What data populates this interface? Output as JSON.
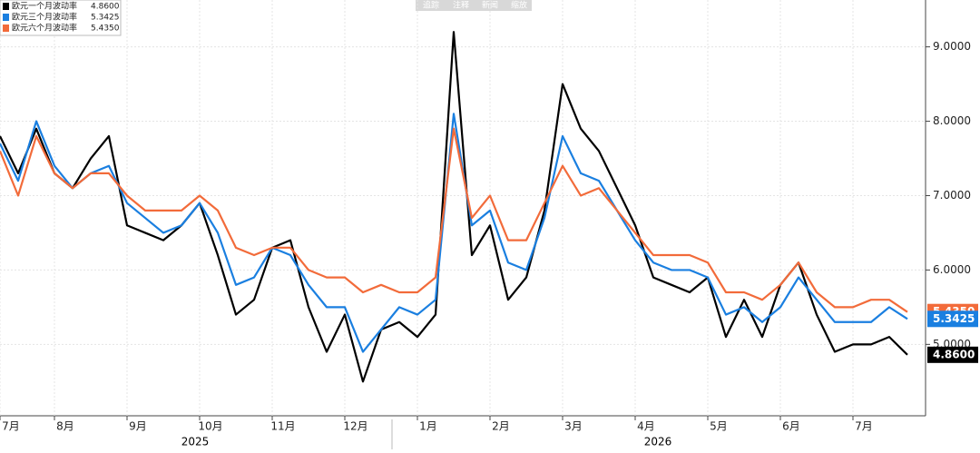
{
  "toolbar": [
    "追踪",
    "注释",
    "新闻",
    "缩放"
  ],
  "chart_data": {
    "type": "line",
    "categories": [
      "7月",
      null,
      null,
      "8月",
      null,
      null,
      null,
      "9月",
      null,
      null,
      null,
      "10月",
      null,
      null,
      null,
      "11月",
      null,
      null,
      null,
      "12月",
      null,
      null,
      null,
      "1月",
      null,
      null,
      null,
      "2月",
      null,
      null,
      null,
      "3月",
      null,
      null,
      null,
      "4月",
      null,
      null,
      null,
      "5月",
      null,
      null,
      null,
      "6月",
      null,
      null,
      null,
      "7月",
      null,
      null,
      null
    ],
    "year_labels": [
      "2025",
      "2026"
    ],
    "ylim": [
      4.04,
      9.63
    ],
    "yticks": [
      {
        "value": 5,
        "label": "5.0000"
      },
      {
        "value": 6,
        "label": "6.0000"
      },
      {
        "value": 7,
        "label": "7.0000"
      },
      {
        "value": 8,
        "label": "8.0000"
      },
      {
        "value": 9,
        "label": "9.0000"
      }
    ],
    "grid": true,
    "legend": "top-left",
    "series": [
      {
        "name": "欧元一个月波动率",
        "color": "#000000",
        "end_label": "4.8600",
        "values": [
          7.8,
          7.3,
          7.9,
          7.3,
          7.1,
          7.5,
          7.8,
          6.6,
          6.5,
          6.4,
          6.6,
          6.9,
          6.2,
          5.4,
          5.6,
          6.3,
          6.4,
          5.5,
          4.9,
          5.4,
          4.5,
          5.2,
          5.3,
          5.1,
          5.4,
          9.2,
          6.2,
          6.6,
          5.6,
          5.9,
          6.8,
          8.5,
          7.9,
          7.6,
          7.1,
          6.6,
          5.9,
          5.8,
          5.7,
          5.9,
          5.1,
          5.6,
          5.1,
          5.8,
          6.1,
          5.4,
          4.9,
          5.0,
          5.0,
          5.1,
          4.86
        ]
      },
      {
        "name": "欧元三个月波动率",
        "color": "#1a7fe0",
        "end_label": "5.3425",
        "values": [
          7.7,
          7.2,
          8.0,
          7.4,
          7.1,
          7.3,
          7.4,
          6.9,
          6.7,
          6.5,
          6.6,
          6.9,
          6.5,
          5.8,
          5.9,
          6.3,
          6.2,
          5.8,
          5.5,
          5.5,
          4.9,
          5.2,
          5.5,
          5.4,
          5.6,
          8.1,
          6.6,
          6.8,
          6.1,
          6.0,
          6.7,
          7.8,
          7.3,
          7.2,
          6.8,
          6.4,
          6.1,
          6.0,
          6.0,
          5.9,
          5.4,
          5.5,
          5.3,
          5.5,
          5.9,
          5.6,
          5.3,
          5.3,
          5.3,
          5.5,
          5.3425
        ]
      },
      {
        "name": "欧元六个月波动率",
        "color": "#f26b3a",
        "end_label": "5.4350",
        "values": [
          7.6,
          7.0,
          7.8,
          7.3,
          7.1,
          7.3,
          7.3,
          7.0,
          6.8,
          6.8,
          6.8,
          7.0,
          6.8,
          6.3,
          6.2,
          6.3,
          6.3,
          6.0,
          5.9,
          5.9,
          5.7,
          5.8,
          5.7,
          5.7,
          5.9,
          7.9,
          6.7,
          7.0,
          6.4,
          6.4,
          6.9,
          7.4,
          7.0,
          7.1,
          6.8,
          6.5,
          6.2,
          6.2,
          6.2,
          6.1,
          5.7,
          5.7,
          5.6,
          5.8,
          6.1,
          5.7,
          5.5,
          5.5,
          5.6,
          5.6,
          5.435
        ]
      }
    ]
  }
}
